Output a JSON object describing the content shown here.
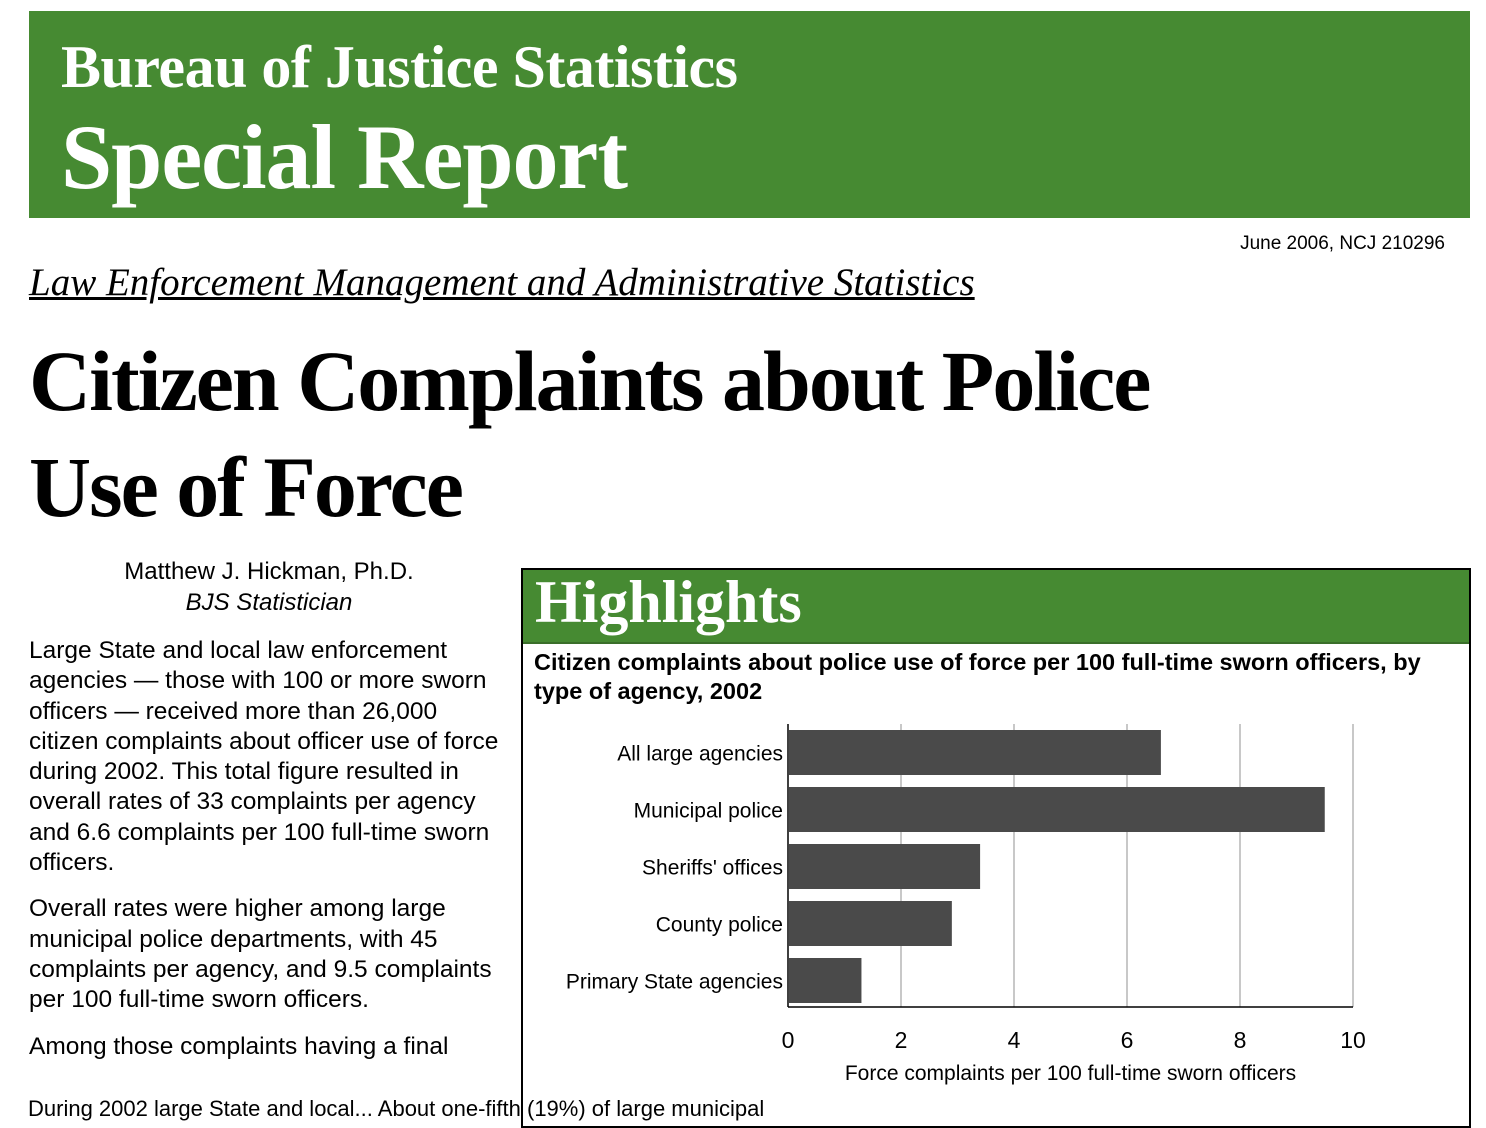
{
  "header": {
    "line1": "Bureau of Justice Statistics",
    "line2": "Special Report"
  },
  "pub_info": "June 2006, NCJ 210296",
  "series_title": "Law Enforcement Management and Administrative Statistics",
  "title": {
    "line1": "Citizen Complaints about Police",
    "line2": "Use of Force"
  },
  "author": {
    "name": "Matthew J. Hickman, Ph.D.",
    "role": "BJS Statistician"
  },
  "body": {
    "p1": "Large State and local law enforcement agencies — those with 100 or more sworn officers — received more than 26,000 citizen complaints about officer use of force during 2002. This total figure resulted in overall rates of 33 complaints per agency and 6.6 complaints per 100 full-time sworn officers.",
    "p2": "Overall rates were higher among large municipal police departments, with 45 complaints per agency, and 9.5 complaints per 100 full-time sworn officers.",
    "p3": "Among those complaints having a final"
  },
  "highlights": {
    "heading": "Highlights",
    "bottom_text": "During 2002 large State and local... About one-fifth (19%) of large municipal"
  },
  "colors": {
    "brand_green": "#468a32",
    "bar": "#4a4a4a",
    "grid": "#c8c8c8"
  },
  "chart_data": {
    "type": "bar",
    "orientation": "horizontal",
    "title": "Citizen complaints about police use of force per 100 full-time sworn officers, by type of agency, 2002",
    "categories": [
      "All large agencies",
      "Municipal police",
      "Sheriffs' offices",
      "County police",
      "Primary State agencies"
    ],
    "values": [
      6.6,
      9.5,
      3.4,
      2.9,
      1.3
    ],
    "xlabel": "Force complaints per 100 full-time sworn officers",
    "ylabel": "",
    "xlim": [
      0,
      10
    ],
    "xticks": [
      "0",
      "2",
      "4",
      "6",
      "8",
      "10"
    ],
    "grid": true
  }
}
